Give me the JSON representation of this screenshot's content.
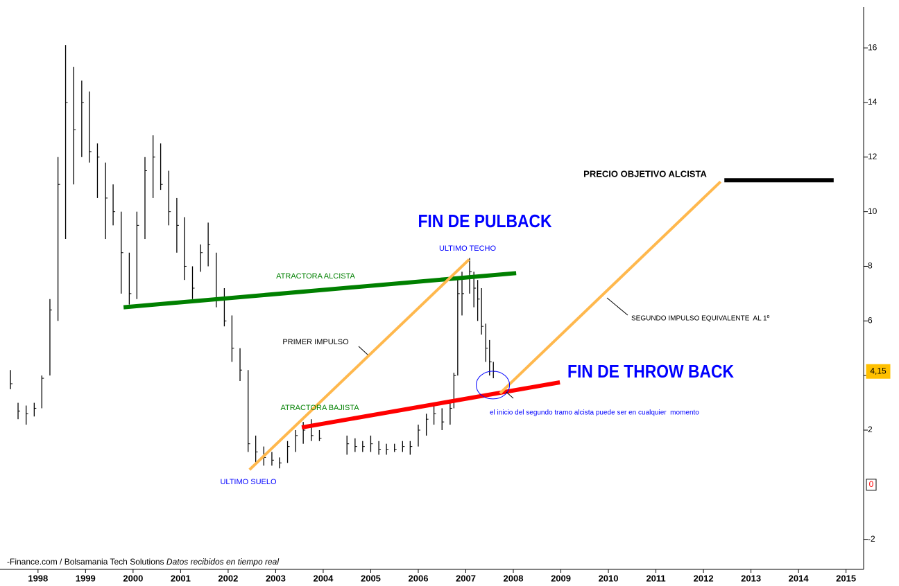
{
  "chart_data": {
    "type": "ohlc",
    "color": "#000000",
    "x": [
      1997.42,
      1997.58,
      1997.75,
      1997.92,
      1998.08,
      1998.25,
      1998.42,
      1998.58,
      1998.75,
      1998.92,
      1999.08,
      1999.25,
      1999.42,
      1999.58,
      1999.75,
      1999.92,
      2000.08,
      2000.25,
      2000.42,
      2000.58,
      2000.75,
      2000.92,
      2001.08,
      2001.25,
      2001.42,
      2001.58,
      2001.75,
      2001.92,
      2002.08,
      2002.25,
      2002.42,
      2002.58,
      2002.75,
      2002.92,
      2003.08,
      2003.25,
      2003.42,
      2003.58,
      2003.75,
      2003.92,
      2004.5,
      2004.67,
      2004.83,
      2005.0,
      2005.17,
      2005.33,
      2005.5,
      2005.67,
      2005.83,
      2006.0,
      2006.17,
      2006.33,
      2006.5,
      2006.67,
      2006.75,
      2006.83,
      2006.92,
      2007.08,
      2007.17,
      2007.25,
      2007.33,
      2007.42,
      2007.5,
      2007.58
    ],
    "high": [
      4.2,
      3.0,
      2.9,
      3.0,
      4.0,
      6.8,
      12.0,
      16.1,
      15.3,
      14.8,
      14.4,
      12.5,
      11.8,
      11.0,
      10.0,
      8.5,
      10.0,
      12.0,
      12.8,
      12.5,
      11.5,
      10.5,
      9.8,
      8.0,
      8.8,
      9.6,
      8.5,
      7.2,
      6.2,
      5.0,
      4.2,
      1.8,
      1.4,
      1.2,
      1.0,
      1.6,
      2.0,
      2.3,
      2.4,
      2.0,
      1.8,
      1.7,
      1.6,
      1.8,
      1.6,
      1.5,
      1.5,
      1.6,
      1.6,
      2.2,
      2.6,
      3.0,
      2.8,
      3.0,
      4.1,
      7.5,
      7.8,
      8.3,
      7.8,
      7.5,
      7.2,
      5.9,
      5.3,
      4.5
    ],
    "low": [
      3.5,
      2.4,
      2.2,
      2.5,
      2.8,
      4.0,
      6.0,
      9.0,
      11.0,
      12.0,
      11.8,
      10.5,
      9.0,
      9.5,
      7.0,
      6.6,
      6.8,
      9.0,
      10.5,
      10.8,
      9.5,
      8.5,
      7.5,
      6.8,
      7.8,
      8.0,
      6.5,
      5.8,
      4.5,
      3.8,
      1.2,
      0.8,
      0.7,
      0.7,
      0.6,
      0.8,
      1.2,
      1.5,
      1.6,
      1.6,
      1.1,
      1.2,
      1.2,
      1.2,
      1.1,
      1.1,
      1.2,
      1.2,
      1.1,
      1.4,
      1.8,
      2.2,
      2.0,
      2.2,
      2.8,
      4.0,
      6.2,
      7.0,
      6.5,
      6.0,
      5.5,
      4.5,
      4.0,
      3.9
    ],
    "close": [
      3.7,
      2.7,
      2.6,
      2.8,
      3.9,
      6.4,
      11.0,
      14.0,
      13.0,
      14.0,
      12.2,
      12.0,
      10.5,
      10.0,
      8.5,
      7.0,
      9.5,
      11.5,
      12.0,
      11.0,
      10.0,
      9.5,
      8.0,
      7.2,
      8.5,
      8.8,
      6.8,
      6.0,
      5.0,
      4.2,
      1.5,
      1.2,
      1.0,
      0.9,
      0.8,
      1.4,
      1.8,
      2.0,
      1.8,
      1.7,
      1.5,
      1.4,
      1.4,
      1.5,
      1.3,
      1.3,
      1.3,
      1.4,
      1.4,
      2.0,
      2.4,
      2.6,
      2.3,
      2.8,
      4.0,
      7.0,
      7.0,
      7.8,
      7.2,
      6.8,
      5.8,
      5.0,
      4.5,
      4.15
    ],
    "xlim": [
      1997.2,
      2015.37
    ],
    "xticks": [
      1998,
      1999,
      2000,
      2001,
      2002,
      2003,
      2004,
      2005,
      2006,
      2007,
      2008,
      2009,
      2010,
      2011,
      2012,
      2013,
      2014,
      2015
    ],
    "ylim": [
      -3.1,
      17.5
    ],
    "yticks": [
      -2,
      2,
      4,
      6,
      8,
      10,
      12,
      14,
      16
    ],
    "markers": [
      {
        "value": 4.15,
        "label": "4,15",
        "color": "#ffc000"
      },
      {
        "value": 0,
        "label": "0",
        "color": "#ff0000"
      }
    ],
    "trendlines": [
      {
        "x": [
          1999.8,
          2008.06
        ],
        "y": [
          6.5,
          7.75
        ],
        "color": "#008000"
      },
      {
        "x": [
          2003.55,
          2008.98
        ],
        "y": [
          2.1,
          3.75
        ],
        "color": "#ff0000"
      },
      {
        "x": [
          2002.45,
          2007.07
        ],
        "y": [
          0.55,
          8.25
        ],
        "color": "#ffb84d"
      },
      {
        "x": [
          2007.72,
          2012.36
        ],
        "y": [
          3.35,
          11.1
        ],
        "color": "#ffb84d"
      },
      {
        "x": [
          2012.44,
          2014.74
        ],
        "y": [
          11.15,
          11.15
        ],
        "color": "#000000"
      }
    ],
    "circle": {
      "x": 2007.57,
      "y": 3.65,
      "color": "#0000ff"
    },
    "annotations": [
      {
        "text": "FIN DE PULBACK",
        "color": "#0000ff"
      },
      {
        "text": "ULTIMO TECHO",
        "color": "#0000ff"
      },
      {
        "text": "ATRACTORA ALCISTA",
        "color": "#008000"
      },
      {
        "text": "PRIMER IMPULSO",
        "color": "#000000"
      },
      {
        "text": "ATRACTORA BAJISTA",
        "color": "#008000"
      },
      {
        "text": "ULTIMO SUELO",
        "color": "#0000ff"
      },
      {
        "text": "FIN DE THROW BACK",
        "color": "#0000ff"
      },
      {
        "text": "el inicio del segundo tramo alcista puede ser en cualquier  momento",
        "color": "#0000ff"
      },
      {
        "text": "PRECIO OBJETIVO ALCISTA",
        "color": "#000000"
      },
      {
        "text": "SEGUNDO IMPULSO EQUIVALENTE  AL 1º",
        "color": "#000000"
      }
    ],
    "source": "-Finance.com / Bolsamania Tech Solutions",
    "note": "Datos recibidos en tiempo real"
  }
}
